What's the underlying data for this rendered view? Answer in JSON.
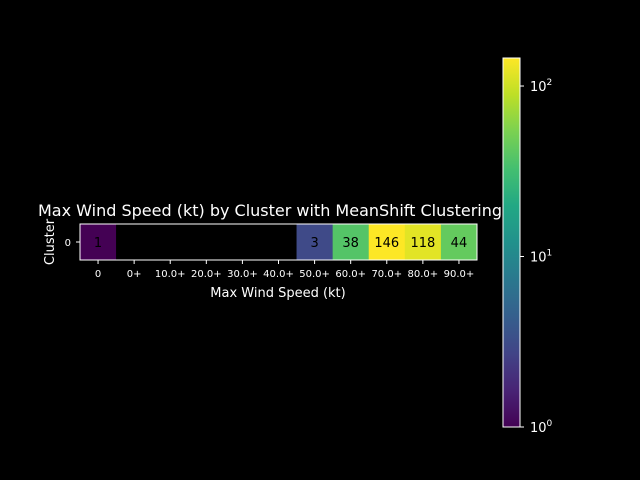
{
  "chart_data": {
    "type": "heatmap",
    "title": "Max Wind Speed (kt) by Cluster with MeanShift Clustering",
    "xlabel": "Max Wind Speed (kt)",
    "ylabel": "Cluster",
    "x_categories": [
      "0",
      "0+",
      "10.0+",
      "20.0+",
      "30.0+",
      "40.0+",
      "50.0+",
      "60.0+",
      "70.0+",
      "80.0+",
      "90.0+"
    ],
    "y_categories": [
      "0"
    ],
    "values": [
      [
        1,
        null,
        null,
        null,
        null,
        null,
        3,
        38,
        146,
        118,
        44
      ]
    ],
    "colorscale": "viridis",
    "color_scale_type": "log",
    "colorbar": {
      "min": 1,
      "max": 146,
      "ticks": [
        {
          "value": 1,
          "label": "10",
          "exp": "0"
        },
        {
          "value": 10,
          "label": "10",
          "exp": "1"
        },
        {
          "value": 100,
          "label": "10",
          "exp": "2"
        }
      ]
    },
    "missing_color": "#000000"
  }
}
